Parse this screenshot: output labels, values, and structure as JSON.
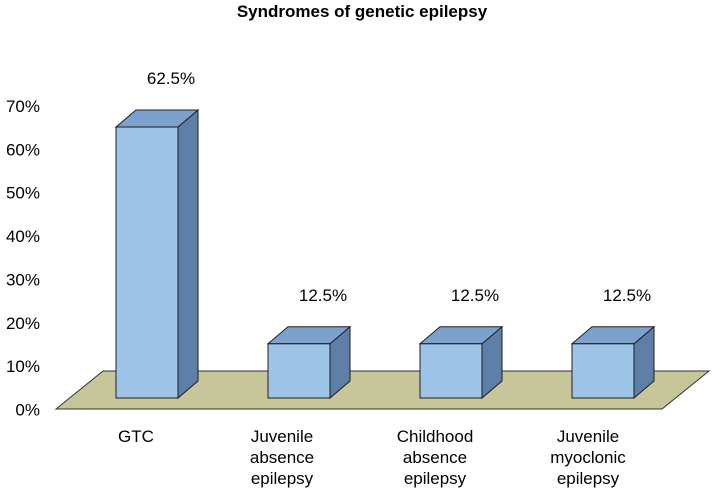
{
  "chart_data": {
    "type": "bar",
    "title": "Syndromes of genetic epilepsy",
    "categories": [
      [
        "GTC"
      ],
      [
        "Juvenile",
        "absence",
        "epilepsy"
      ],
      [
        "Childhood",
        "absence",
        "epilepsy"
      ],
      [
        "Juvenile",
        "myoclonic",
        "epilepsy"
      ]
    ],
    "values": [
      62.5,
      12.5,
      12.5,
      12.5
    ],
    "data_labels": [
      "62.5%",
      "12.5%",
      "12.5%",
      "12.5%"
    ],
    "y_ticks": [
      "0%",
      "10%",
      "20%",
      "30%",
      "40%",
      "50%",
      "60%",
      "70%"
    ],
    "ylim": [
      0,
      70
    ],
    "xlabel": "",
    "ylabel": "",
    "grid": false,
    "style": "3d",
    "colors": {
      "bar_front": "#9DC3E6",
      "bar_top": "#7BA1CC",
      "bar_side": "#5E7FA8",
      "bar_edge": "#1F1F1F",
      "floor": "#C7C59A"
    }
  }
}
